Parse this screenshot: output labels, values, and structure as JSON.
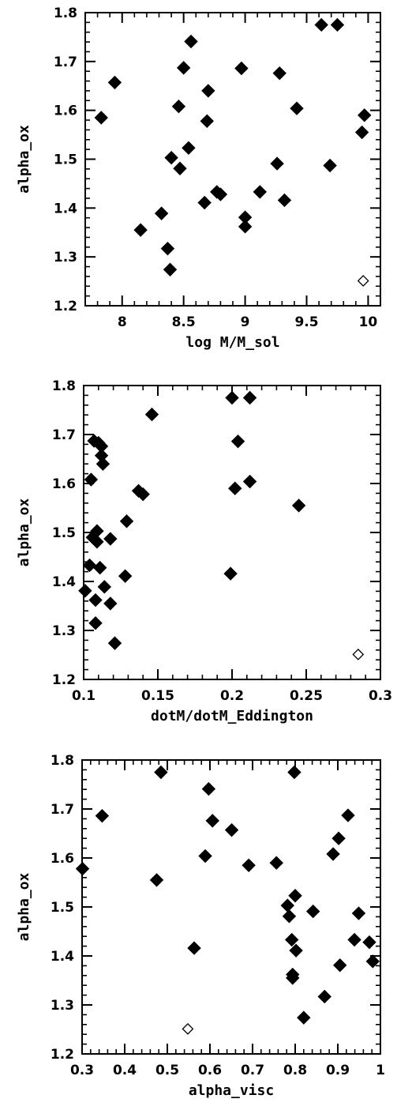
{
  "chart_data": [
    {
      "type": "scatter",
      "xlabel": "log M/M_sol",
      "ylabel": "alpha_ox",
      "xlim": [
        7.7,
        10.1
      ],
      "ylim": [
        1.2,
        1.8
      ],
      "xticks": [
        8,
        8.5,
        9,
        9.5,
        10
      ],
      "xtick_labels": [
        "8",
        "8.5",
        "9",
        "9.5",
        "10"
      ],
      "yticks": [
        1.2,
        1.3,
        1.4,
        1.5,
        1.6,
        1.7,
        1.8
      ],
      "ytick_labels": [
        "1.2",
        "1.3",
        "1.4",
        "1.5",
        "1.6",
        "1.7",
        "1.8"
      ],
      "grid": false,
      "series": [
        {
          "marker": "filled-diamond",
          "x": [
            7.83,
            7.94,
            8.15,
            8.32,
            8.37,
            8.39,
            8.4,
            8.46,
            8.47,
            8.5,
            8.54,
            8.56,
            8.67,
            8.69,
            8.7,
            8.77,
            8.8,
            8.97,
            9.0,
            9.0,
            9.12,
            9.26,
            9.28,
            9.32,
            9.42,
            9.62,
            9.69,
            9.75,
            9.95,
            9.97
          ],
          "y": [
            1.585,
            1.657,
            1.355,
            1.389,
            1.317,
            1.274,
            1.503,
            1.608,
            1.481,
            1.687,
            1.523,
            1.741,
            1.411,
            1.578,
            1.64,
            1.433,
            1.428,
            1.686,
            1.381,
            1.362,
            1.433,
            1.491,
            1.676,
            1.416,
            1.604,
            1.775,
            1.487,
            1.775,
            1.555,
            1.59
          ]
        },
        {
          "marker": "open-diamond",
          "x": [
            9.96
          ],
          "y": [
            1.251
          ]
        }
      ]
    },
    {
      "type": "scatter",
      "xlabel": "dotM/dotM_Eddington",
      "ylabel": "alpha_ox",
      "xlim": [
        0.1,
        0.3
      ],
      "ylim": [
        1.2,
        1.8
      ],
      "xticks": [
        0.1,
        0.15,
        0.2,
        0.25,
        0.3
      ],
      "xtick_labels": [
        "0.1",
        "0.15",
        "0.2",
        "0.25",
        "0.3"
      ],
      "yticks": [
        1.2,
        1.3,
        1.4,
        1.5,
        1.6,
        1.7,
        1.8
      ],
      "ytick_labels": [
        "1.2",
        "1.3",
        "1.4",
        "1.5",
        "1.6",
        "1.7",
        "1.8"
      ],
      "grid": false,
      "series": [
        {
          "marker": "filled-diamond",
          "x": [
            0.101,
            0.104,
            0.105,
            0.106,
            0.107,
            0.108,
            0.108,
            0.109,
            0.109,
            0.11,
            0.111,
            0.112,
            0.112,
            0.113,
            0.114,
            0.118,
            0.118,
            0.121,
            0.128,
            0.129,
            0.137,
            0.14,
            0.146,
            0.199,
            0.2,
            0.202,
            0.204,
            0.212,
            0.212,
            0.245
          ],
          "y": [
            1.381,
            1.433,
            1.608,
            1.49,
            1.687,
            1.315,
            1.362,
            1.481,
            1.503,
            1.683,
            1.428,
            1.657,
            1.676,
            1.64,
            1.389,
            1.355,
            1.487,
            1.274,
            1.411,
            1.523,
            1.585,
            1.578,
            1.741,
            1.416,
            1.775,
            1.59,
            1.686,
            1.604,
            1.775,
            1.555
          ]
        },
        {
          "marker": "open-diamond",
          "x": [
            0.285
          ],
          "y": [
            1.251
          ]
        }
      ]
    },
    {
      "type": "scatter",
      "xlabel": "alpha_visc",
      "ylabel": "alpha_ox",
      "xlim": [
        0.3,
        1.0
      ],
      "ylim": [
        1.2,
        1.8
      ],
      "xticks": [
        0.3,
        0.4,
        0.5,
        0.6,
        0.7,
        0.8,
        0.9,
        1.0
      ],
      "xtick_labels": [
        "0.3",
        "0.4",
        "0.5",
        "0.6",
        "0.7",
        "0.8",
        "0.9",
        "1"
      ],
      "yticks": [
        1.2,
        1.3,
        1.4,
        1.5,
        1.6,
        1.7,
        1.8
      ],
      "ytick_labels": [
        "1.2",
        "1.3",
        "1.4",
        "1.5",
        "1.6",
        "1.7",
        "1.8"
      ],
      "grid": false,
      "series": [
        {
          "marker": "filled-diamond",
          "x": [
            0.301,
            0.347,
            0.475,
            0.485,
            0.563,
            0.589,
            0.597,
            0.606,
            0.651,
            0.691,
            0.756,
            0.782,
            0.786,
            0.792,
            0.794,
            0.794,
            0.798,
            0.8,
            0.802,
            0.82,
            0.842,
            0.869,
            0.889,
            0.902,
            0.905,
            0.924,
            0.939,
            0.949,
            0.974,
            0.982
          ],
          "y": [
            1.578,
            1.686,
            1.555,
            1.775,
            1.416,
            1.604,
            1.741,
            1.676,
            1.657,
            1.585,
            1.59,
            1.503,
            1.481,
            1.433,
            1.362,
            1.355,
            1.775,
            1.523,
            1.411,
            1.274,
            1.491,
            1.317,
            1.608,
            1.64,
            1.381,
            1.687,
            1.433,
            1.487,
            1.428,
            1.389
          ]
        },
        {
          "marker": "open-diamond",
          "x": [
            0.548
          ],
          "y": [
            1.251
          ]
        }
      ]
    }
  ]
}
